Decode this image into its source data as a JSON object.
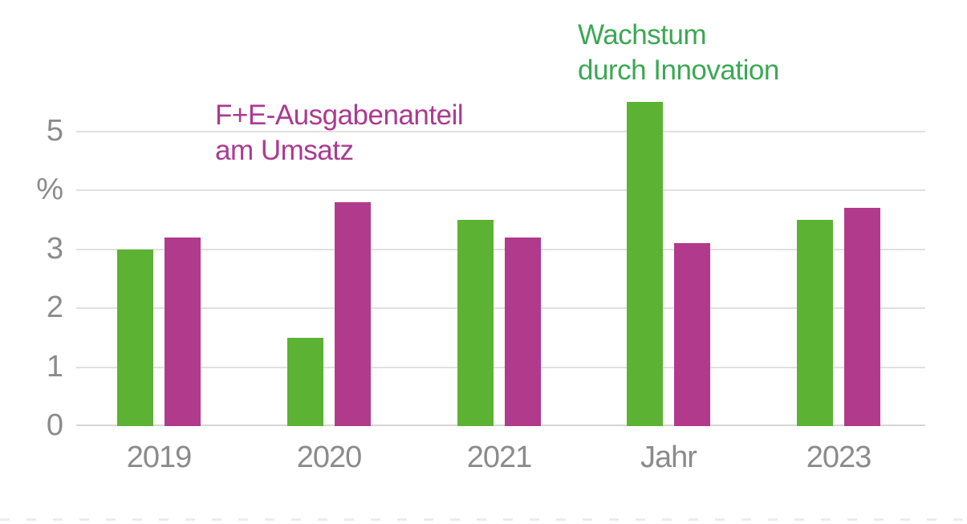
{
  "chart_data": {
    "type": "bar",
    "categories": [
      "2019",
      "2020",
      "2021",
      "Jahr",
      "2023"
    ],
    "series": [
      {
        "name": "Wachstum durch Innovation",
        "color": "#5cb233",
        "values": [
          3.0,
          1.5,
          3.5,
          5.5,
          3.5
        ]
      },
      {
        "name": "F+E-Ausgabenanteil am Umsatz",
        "color": "#b23a8d",
        "values": [
          3.2,
          3.8,
          3.2,
          3.1,
          3.7
        ]
      }
    ],
    "annotations": {
      "growth": {
        "line1": "Wachstum",
        "line2": "durch Innovation"
      },
      "rd": {
        "line1": "F+E-Ausgabenanteil",
        "line2": "am Umsatz"
      }
    },
    "y_axis": {
      "unit_label": "%",
      "tick_labels": [
        "0",
        "1",
        "2",
        "3",
        "%",
        "5"
      ],
      "tick_values": [
        0,
        1,
        2,
        3,
        4,
        5
      ],
      "ylim": [
        0,
        5.8
      ],
      "grid": true
    },
    "x_axis": {
      "tick_labels": [
        "2019",
        "2020",
        "2021",
        "Jahr",
        "2023"
      ]
    },
    "legend_position": "as-annotations",
    "title": ""
  },
  "colors": {
    "green_bar": "#5cb233",
    "magenta_bar": "#b23a8d",
    "green_text": "#3ba853",
    "magenta_text": "#ab3a90",
    "axis_text": "#8b8b8b",
    "gridline": "#e0e0de"
  }
}
